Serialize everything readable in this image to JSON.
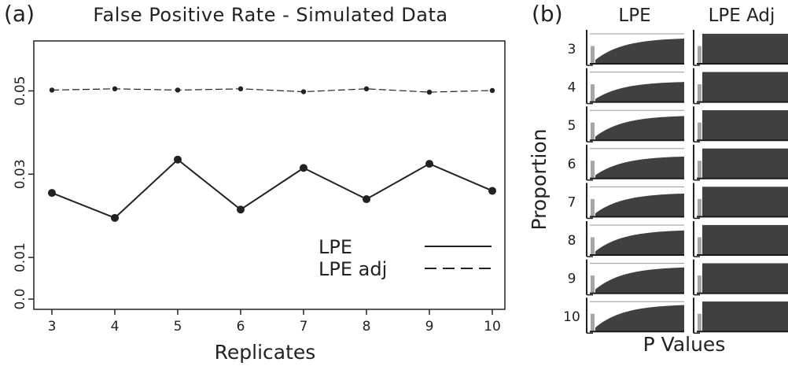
{
  "panel_a": {
    "label": "(a)",
    "chart_data": {
      "type": "line",
      "title": "False Positive Rate - Simulated Data",
      "xlabel": "Replicates",
      "ylabel": "",
      "x": [
        3,
        4,
        5,
        6,
        7,
        8,
        9,
        10
      ],
      "xlim": [
        3,
        10
      ],
      "ylim": [
        0.0,
        0.062
      ],
      "yticks": [
        0.0,
        0.01,
        0.03,
        0.05
      ],
      "ytick_labels": [
        "0.0",
        "0.01",
        "0.03",
        "0.05"
      ],
      "series": [
        {
          "name": "LPE",
          "style": "solid",
          "color": "#222222",
          "values": [
            0.0255,
            0.0195,
            0.0335,
            0.0215,
            0.0315,
            0.024,
            0.0325,
            0.026
          ]
        },
        {
          "name": "LPE adj",
          "style": "dashed",
          "color": "#222222",
          "values": [
            0.0502,
            0.0505,
            0.0502,
            0.0505,
            0.0498,
            0.0505,
            0.0497,
            0.0501
          ]
        }
      ],
      "legend": "bottom-right",
      "grid": false
    }
  },
  "panel_b": {
    "label": "(b)",
    "chart_data": {
      "type": "area",
      "xlabel": "P Values",
      "ylabel": "Proportion",
      "columns": [
        "LPE",
        "LPE Adj"
      ],
      "rows": [
        "3",
        "4",
        "5",
        "6",
        "7",
        "8",
        "9",
        "10"
      ],
      "fill_color": "#404040",
      "ref_bar_color": "#a6a6a6",
      "lpe_curve_level": [
        0.78,
        0.62,
        0.75,
        0.68,
        0.72,
        0.76,
        0.8,
        0.82
      ],
      "lpe_adj_level": [
        0.93,
        0.93,
        0.93,
        0.93,
        0.93,
        0.93,
        0.93,
        0.93
      ]
    }
  }
}
